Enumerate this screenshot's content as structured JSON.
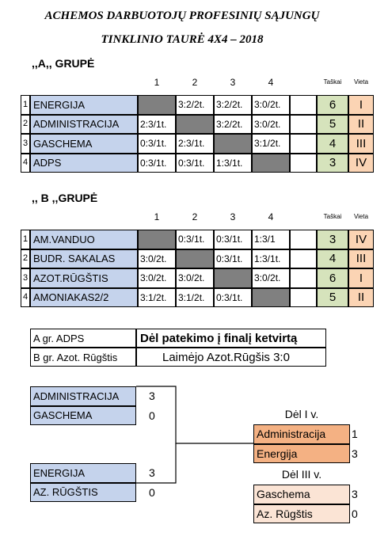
{
  "title": [
    "ACHEMOS DARBUOTOJŲ PROFESINIŲ SĄJUNGŲ",
    "TINKLINIO TAURĖ 4X4 – 2018"
  ],
  "groups": [
    {
      "title": ",,A,, GRUPĖ",
      "columns": [
        "1",
        "2",
        "3",
        "4",
        "Taškai",
        "Vieta"
      ],
      "rows": [
        {
          "n": 1,
          "team": "ENERGIJA",
          "results": [
            null,
            "3:2/2t.",
            "3:2/2t.",
            "3:0/2t."
          ],
          "points": 6,
          "place": "I"
        },
        {
          "n": 2,
          "team": "ADMINISTRACIJA",
          "results": [
            "2:3/1t.",
            null,
            "3:2/2t.",
            "3:0/2t."
          ],
          "points": 5,
          "place": "II"
        },
        {
          "n": 3,
          "team": "GASCHEMA",
          "results": [
            "0:3/1t.",
            "2:3/1t.",
            null,
            "3:1/2t."
          ],
          "points": 4,
          "place": "III"
        },
        {
          "n": 4,
          "team": "ADPS",
          "results": [
            "0:3/1t.",
            "0:3/1t.",
            "1:3/1t.",
            null
          ],
          "points": 3,
          "place": "IV"
        }
      ]
    },
    {
      "title": ",, B ,,GRUPĖ",
      "columns": [
        "1",
        "2",
        "3",
        "4",
        "Taškai",
        "Vieta"
      ],
      "rows": [
        {
          "n": 1,
          "team": "AM.VANDUO",
          "results": [
            null,
            "0:3/1t.",
            "0:3/1t.",
            "1:3/1"
          ],
          "points": 3,
          "place": "IV"
        },
        {
          "n": 2,
          "team": "BUDR. SAKALAS",
          "results": [
            "3:0/2t.",
            null,
            "0:3/1t.",
            "1:3/1t."
          ],
          "points": 4,
          "place": "III"
        },
        {
          "n": 3,
          "team": "AZOT.RŪGŠTIS",
          "results": [
            "3:0/2t.",
            "3:0/2t.",
            null,
            "3:0/2t."
          ],
          "points": 6,
          "place": "I"
        },
        {
          "n": 4,
          "team": "AMONIAKAS2/2",
          "results": [
            "3:1/2t.",
            "3:1/2t.",
            "0:3/1t.",
            null
          ],
          "points": 5,
          "place": "II"
        }
      ]
    }
  ],
  "playoff": {
    "rows": [
      [
        "A gr.  ADPS",
        "Dėl patekimo į finalį ketvirtą"
      ],
      [
        "B gr.  Azot. Rūgštis",
        "Laimėjo Azot.Rūgšis 3:0"
      ]
    ]
  },
  "semifinals": [
    [
      {
        "team": "ADMINISTRACIJA",
        "score": 3
      },
      {
        "team": "GASCHEMA",
        "score": 0
      }
    ],
    [
      {
        "team": "ENERGIJA",
        "score": 3
      },
      {
        "team": "AZ. RŪGŠTIS",
        "score": 0
      }
    ]
  ],
  "finals": [
    {
      "title": "Dėl I v.",
      "rows": [
        {
          "team": "Administracija",
          "score": 1
        },
        {
          "team": "Energija",
          "score": 3
        }
      ]
    },
    {
      "title": "Dėl III v.",
      "rows": [
        {
          "team": "Gaschema",
          "score": 3
        },
        {
          "team": "Az. Rūgštis",
          "score": 0
        }
      ]
    }
  ]
}
